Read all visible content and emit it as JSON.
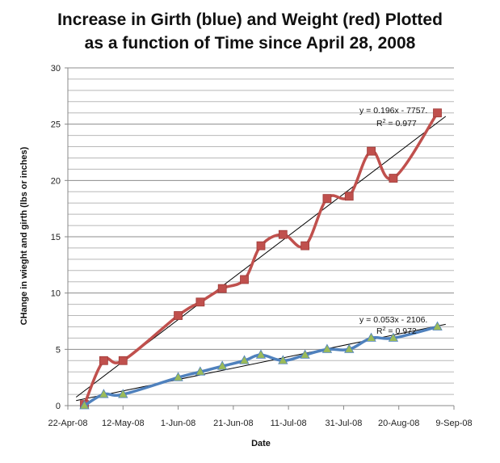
{
  "title_line1": "Increase in Girth (blue) and Weight (red) Plotted",
  "title_line2": "as a function of Time since April 28, 2008",
  "chart_data": {
    "type": "line",
    "title": "Increase in Girth (blue) and Weight (red) Plotted as a function of Time since April 28, 2008",
    "xlabel": "Date",
    "ylabel": "CHange in wieght and girth (lbs or inches)",
    "x_tick_labels": [
      "22-Apr-08",
      "12-May-08",
      "1-Jun-08",
      "21-Jun-08",
      "11-Jul-08",
      "31-Jul-08",
      "20-Aug-08",
      "9-Sep-08"
    ],
    "x_ticks": [
      "2008-04-22",
      "2008-05-12",
      "2008-06-01",
      "2008-06-21",
      "2008-07-11",
      "2008-07-31",
      "2008-08-20",
      "2008-09-09"
    ],
    "xlim": [
      "2008-04-22",
      "2008-09-09"
    ],
    "ylim": [
      0,
      30
    ],
    "y_ticks": [
      0,
      5,
      10,
      15,
      20,
      25,
      30
    ],
    "grid": true,
    "series": [
      {
        "color": "#c0504d",
        "marker": "square",
        "points": [
          {
            "x": "2008-04-28",
            "y": 0.1
          },
          {
            "x": "2008-05-05",
            "y": 4.0
          },
          {
            "x": "2008-05-12",
            "y": 4.0
          },
          {
            "x": "2008-06-01",
            "y": 8.0
          },
          {
            "x": "2008-06-09",
            "y": 9.2
          },
          {
            "x": "2008-06-17",
            "y": 10.4
          },
          {
            "x": "2008-06-25",
            "y": 11.2
          },
          {
            "x": "2008-07-01",
            "y": 14.2
          },
          {
            "x": "2008-07-09",
            "y": 15.2
          },
          {
            "x": "2008-07-17",
            "y": 14.2
          },
          {
            "x": "2008-07-25",
            "y": 18.4
          },
          {
            "x": "2008-08-02",
            "y": 18.6
          },
          {
            "x": "2008-08-10",
            "y": 22.6
          },
          {
            "x": "2008-08-18",
            "y": 20.2
          },
          {
            "x": "2008-09-03",
            "y": 26.0
          }
        ],
        "trendline": {
          "slope": 0.196,
          "intercept": -7757,
          "r2": 0.977,
          "label": "y = 0.196x - 7757.",
          "r2_label_prefix": "R",
          "r2_label_sup": "2",
          "r2_label_value": " = 0.977"
        }
      },
      {
        "color": "#4f81bd",
        "marker": "triangle",
        "marker_color": "#9bbb59",
        "points": [
          {
            "x": "2008-04-28",
            "y": 0.0
          },
          {
            "x": "2008-05-05",
            "y": 1.0
          },
          {
            "x": "2008-05-12",
            "y": 1.0
          },
          {
            "x": "2008-06-01",
            "y": 2.5
          },
          {
            "x": "2008-06-09",
            "y": 3.0
          },
          {
            "x": "2008-06-17",
            "y": 3.5
          },
          {
            "x": "2008-06-25",
            "y": 4.0
          },
          {
            "x": "2008-07-01",
            "y": 4.5
          },
          {
            "x": "2008-07-09",
            "y": 4.0
          },
          {
            "x": "2008-07-17",
            "y": 4.5
          },
          {
            "x": "2008-07-25",
            "y": 5.0
          },
          {
            "x": "2008-08-02",
            "y": 5.0
          },
          {
            "x": "2008-08-10",
            "y": 6.0
          },
          {
            "x": "2008-08-18",
            "y": 6.0
          },
          {
            "x": "2008-09-03",
            "y": 7.0
          }
        ],
        "trendline": {
          "slope": 0.053,
          "intercept": -2106,
          "r2": 0.972,
          "label": "y = 0.053x - 2106.",
          "r2_label_prefix": "R",
          "r2_label_sup": "2",
          "r2_label_value": " = 0.972"
        }
      }
    ]
  }
}
